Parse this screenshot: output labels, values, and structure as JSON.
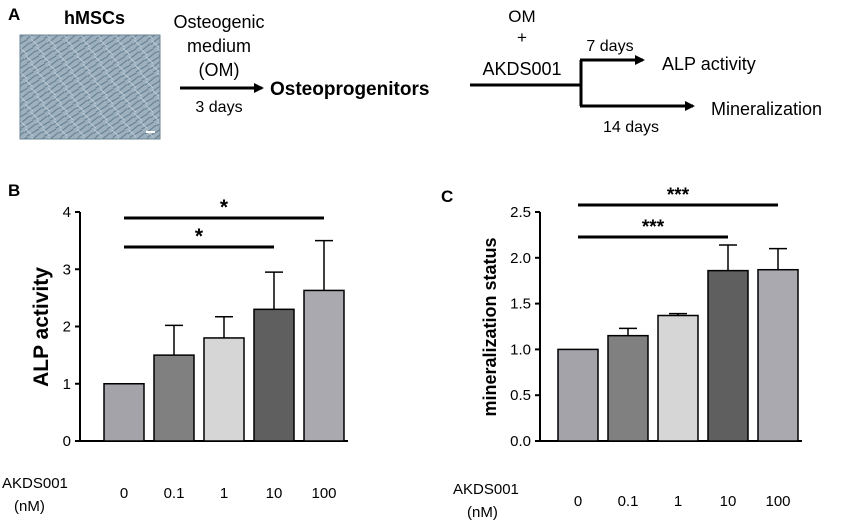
{
  "panel_a": {
    "label": "A",
    "cell_label": "hMSCs",
    "step1_line1": "Osteogenic",
    "step1_line2": "medium",
    "step1_line3": "(OM)",
    "step1_duration": "3 days",
    "intermediate": "Osteoprogenitors",
    "treat_line1": "OM",
    "treat_line2": "+",
    "treat_line3": "AKDS001",
    "branch1_duration": "7 days",
    "branch1_outcome": "ALP activity",
    "branch2_duration": "14 days",
    "branch2_outcome": "Mineralization"
  },
  "colors": {
    "bar_fill": [
      "#a3a3a9",
      "#808080",
      "#d6d6d6",
      "#5f5f5f",
      "#a9a9af"
    ],
    "micrograph": "#8fa6b4"
  },
  "chart_data": [
    {
      "panel_label": "B",
      "type": "bar",
      "ylabel": "ALP activity",
      "xlabel_line1": "AKDS001",
      "xlabel_line2": "(nM)",
      "categories": [
        "0",
        "0.1",
        "1",
        "10",
        "100"
      ],
      "values": [
        1.0,
        1.5,
        1.8,
        2.3,
        2.63
      ],
      "errors": [
        0.0,
        0.52,
        0.37,
        0.65,
        0.87
      ],
      "ylim": [
        0,
        4
      ],
      "yticks": [
        "0",
        "1",
        "2",
        "3",
        "4"
      ],
      "significance": [
        {
          "from": 0,
          "to": 4,
          "label": "*",
          "level": 1
        },
        {
          "from": 0,
          "to": 3,
          "label": "*",
          "level": 0
        }
      ]
    },
    {
      "panel_label": "C",
      "type": "bar",
      "ylabel": "mineralization status",
      "xlabel_line1": "AKDS001",
      "xlabel_line2": "(nM)",
      "categories": [
        "0",
        "0.1",
        "1",
        "10",
        "100"
      ],
      "values": [
        1.0,
        1.15,
        1.37,
        1.86,
        1.87
      ],
      "errors": [
        0.0,
        0.08,
        0.02,
        0.28,
        0.23
      ],
      "ylim": [
        0,
        2.5
      ],
      "yticks": [
        "0.0",
        "0.5",
        "1.0",
        "1.5",
        "2.0",
        "2.5"
      ],
      "significance": [
        {
          "from": 0,
          "to": 4,
          "label": "***",
          "level": 1
        },
        {
          "from": 0,
          "to": 3,
          "label": "***",
          "level": 0
        }
      ]
    }
  ]
}
